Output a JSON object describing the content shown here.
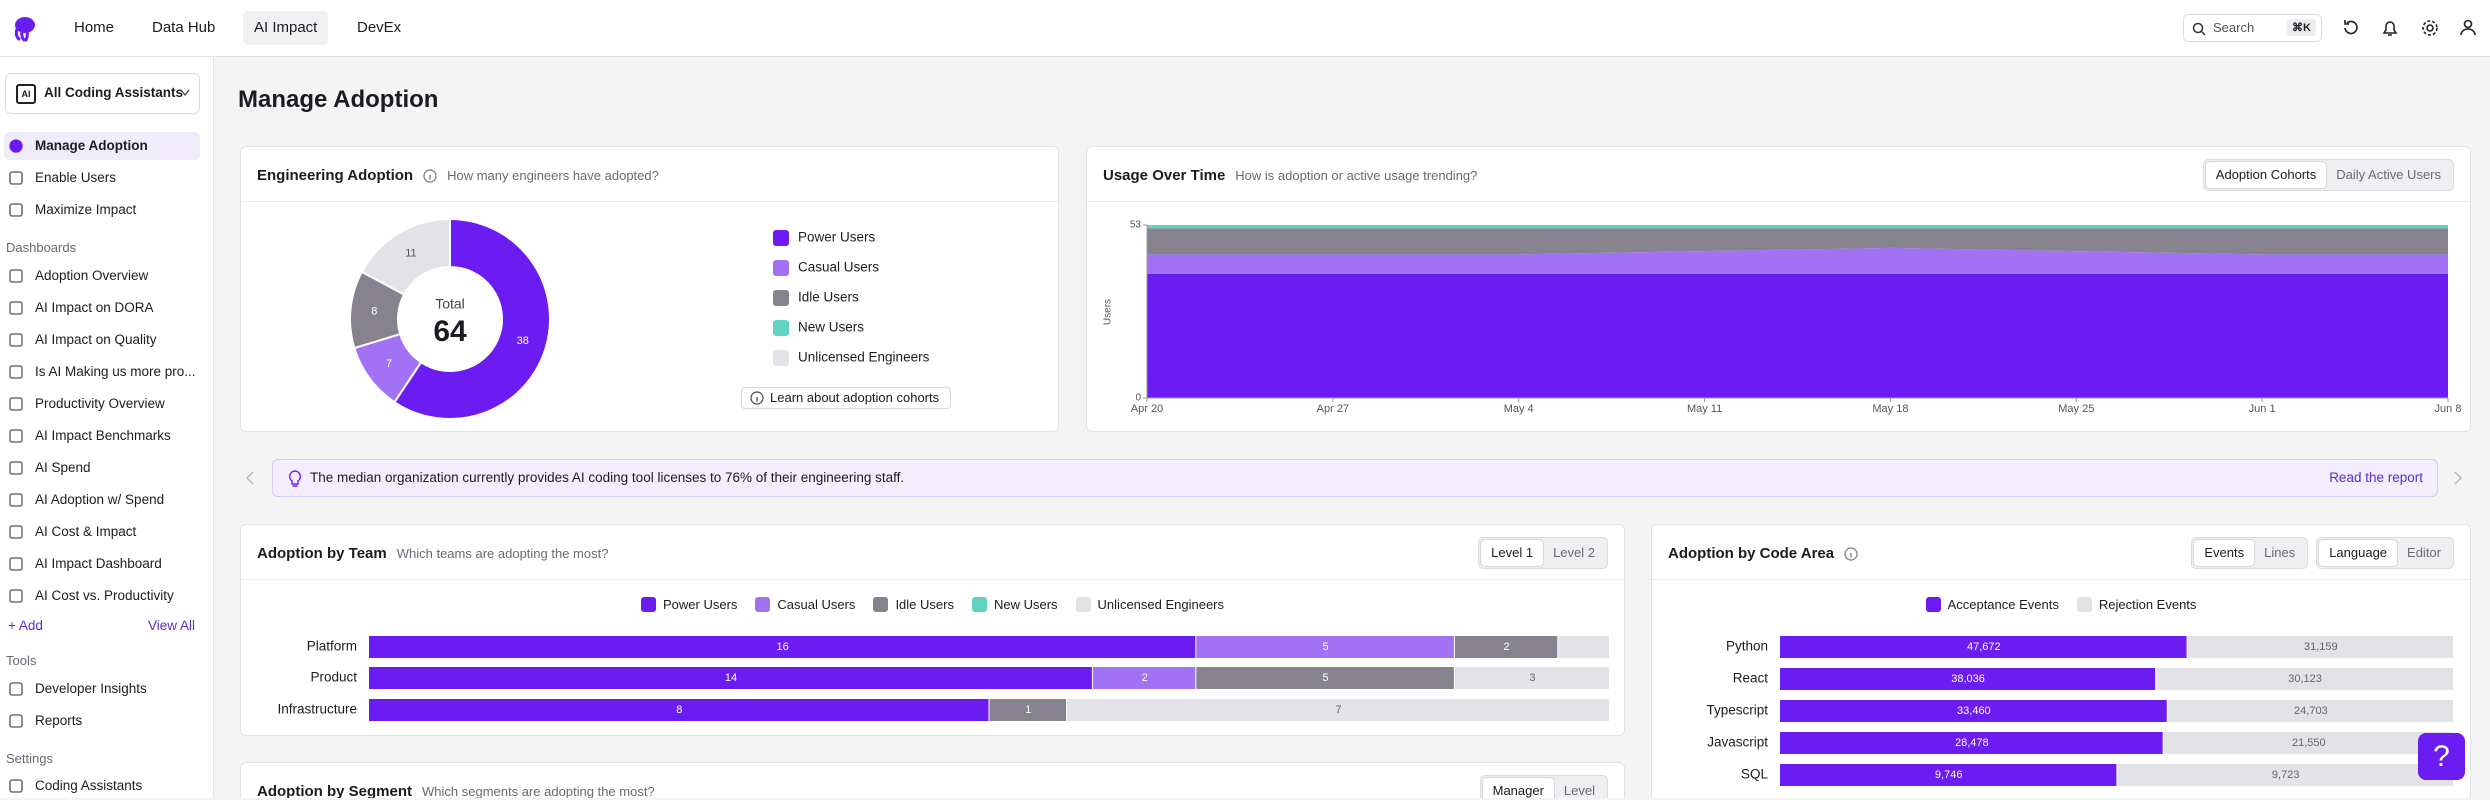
{
  "nav": {
    "items": [
      "Home",
      "Data Hub",
      "AI Impact",
      "DevEx"
    ],
    "search": "Search",
    "shortcut": "⌘K"
  },
  "sidebar": {
    "selector_icon": "AI",
    "selector": "All Coding Assistants",
    "top_items": [
      "Manage Adoption",
      "Enable Users",
      "Maximize Impact"
    ],
    "dashboards_heading": "Dashboards",
    "dashboards": [
      "Adoption Overview",
      "AI Impact on DORA",
      "AI Impact on Quality",
      "Is AI Making us more pro...",
      "Productivity Overview",
      "AI Impact Benchmarks",
      "AI Spend",
      "AI Adoption w/ Spend",
      "AI Cost & Impact",
      "AI Impact Dashboard",
      "AI Cost vs. Productivity"
    ],
    "add": "+ Add",
    "view_all": "View All",
    "tools_heading": "Tools",
    "tools": [
      "Developer Insights",
      "Reports"
    ],
    "settings_heading": "Settings",
    "settings": [
      "Coding Assistants"
    ]
  },
  "page_title": "Manage Adoption",
  "banner": {
    "text": "The median organization currently provides AI coding tool licenses to 76% of their engineering staff.",
    "link": "Read the report"
  },
  "chart_data": [
    {
      "type": "donut",
      "title": "Engineering Adoption",
      "subtitle": "How many engineers have adopted?",
      "categories": [
        "Power Users",
        "Casual Users",
        "Idle Users",
        "New Users",
        "Unlicensed Engineers"
      ],
      "values": [
        38,
        7,
        8,
        0,
        11
      ],
      "colors": [
        "#6b1cf0",
        "#a272f5",
        "#86838f",
        "#5fd3bf",
        "#e3e2e7"
      ],
      "center_label": "Total",
      "total": 64,
      "link": "Learn about adoption cohorts"
    },
    {
      "type": "area",
      "stacked": true,
      "title": "Usage Over Time",
      "subtitle": "How is adoption or active usage trending?",
      "tabs": [
        "Adoption Cohorts",
        "Daily Active Users"
      ],
      "x": [
        "Apr 20",
        "Apr 27",
        "May 4",
        "May 11",
        "May 18",
        "May 25",
        "Jun 1",
        "Jun 8"
      ],
      "ylabel": "Users",
      "ylim": [
        0,
        53
      ],
      "yticks": [
        0,
        53
      ],
      "series": [
        {
          "name": "Power Users",
          "color": "#6b1cf0",
          "values": [
            38,
            38,
            38,
            38,
            38,
            38,
            38,
            38
          ]
        },
        {
          "name": "Casual Users",
          "color": "#a272f5",
          "values": [
            6,
            6,
            6,
            7,
            8,
            7,
            6,
            6
          ]
        },
        {
          "name": "Idle Users",
          "color": "#86838f",
          "values": [
            8,
            8,
            8,
            7,
            6,
            7,
            8,
            8
          ]
        },
        {
          "name": "New Users",
          "color": "#5fd3bf",
          "values": [
            1,
            1,
            1,
            1,
            1,
            1,
            1,
            1
          ]
        }
      ]
    },
    {
      "type": "bar",
      "orientation": "horizontal",
      "stacked": true,
      "normalized": true,
      "title": "Adoption by Team",
      "subtitle": "Which teams are adopting the most?",
      "tabs": [
        "Level 1",
        "Level 2"
      ],
      "categories": [
        "Platform",
        "Product",
        "Infrastructure"
      ],
      "series": [
        {
          "name": "Power Users",
          "color": "#6b1cf0",
          "values": [
            16,
            14,
            8
          ]
        },
        {
          "name": "Casual Users",
          "color": "#a272f5",
          "values": [
            5,
            2,
            0
          ]
        },
        {
          "name": "Idle Users",
          "color": "#86838f",
          "values": [
            2,
            5,
            1
          ]
        },
        {
          "name": "New Users",
          "color": "#5fd3bf",
          "values": [
            0,
            0,
            0
          ]
        },
        {
          "name": "Unlicensed Engineers",
          "color": "#e3e2e7",
          "values": [
            1,
            3,
            7
          ]
        }
      ]
    },
    {
      "type": "bar",
      "orientation": "horizontal",
      "stacked": true,
      "normalized": true,
      "title": "Adoption by Code Area",
      "tabs": [
        [
          "Events",
          "Lines"
        ],
        [
          "Language",
          "Editor"
        ]
      ],
      "categories": [
        "Python",
        "React",
        "Typescript",
        "Javascript",
        "SQL"
      ],
      "series": [
        {
          "name": "Acceptance Events",
          "color": "#6b1cf0",
          "values": [
            47672,
            38036,
            33460,
            28478,
            9746
          ],
          "value_labels": [
            "47,672",
            "38,036",
            "33,460",
            "28,478",
            "9,746"
          ]
        },
        {
          "name": "Rejection Events",
          "color": "#e3e2e7",
          "values": [
            31159,
            30123,
            24703,
            21550,
            9723
          ],
          "value_labels": [
            "31,159",
            "30,123",
            "24,703",
            "21,550",
            "9,723"
          ]
        }
      ]
    }
  ],
  "segment_card": {
    "title": "Adoption by Segment",
    "subtitle": "Which segments are adopting the most?",
    "tabs": [
      "Manager",
      "Level"
    ]
  },
  "help": "?"
}
